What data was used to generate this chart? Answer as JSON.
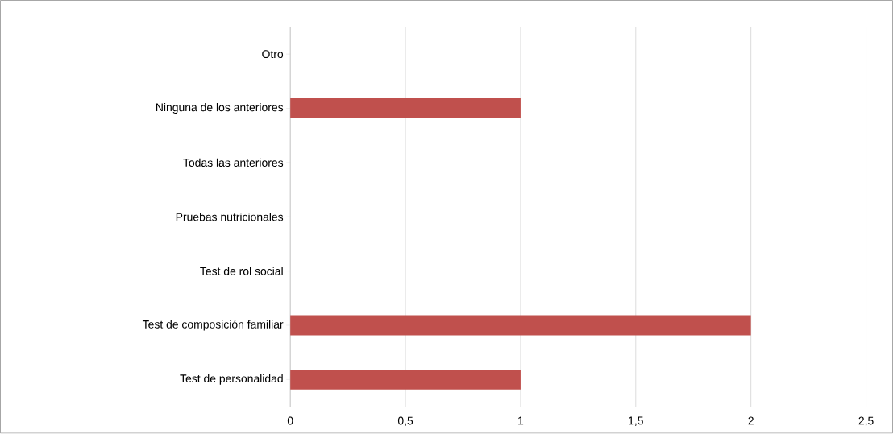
{
  "chart_data": {
    "type": "bar",
    "orientation": "horizontal",
    "categories": [
      "Otro",
      "Ninguna de los anteriores",
      "Todas las anteriores",
      "Pruebas nutricionales",
      "Test de rol social",
      "Test de composición familiar",
      "Test de personalidad"
    ],
    "values": [
      0,
      1,
      0,
      0,
      0,
      2,
      1
    ],
    "color": "#c0504d",
    "xlim": [
      0,
      2.5
    ],
    "xticks": [
      0,
      {
        "value": 0.5,
        "label": "0,5"
      },
      1,
      {
        "value": 1.5,
        "label": "1,5"
      },
      2,
      {
        "value": 2.5,
        "label": "2,5"
      }
    ],
    "grid": "x"
  }
}
